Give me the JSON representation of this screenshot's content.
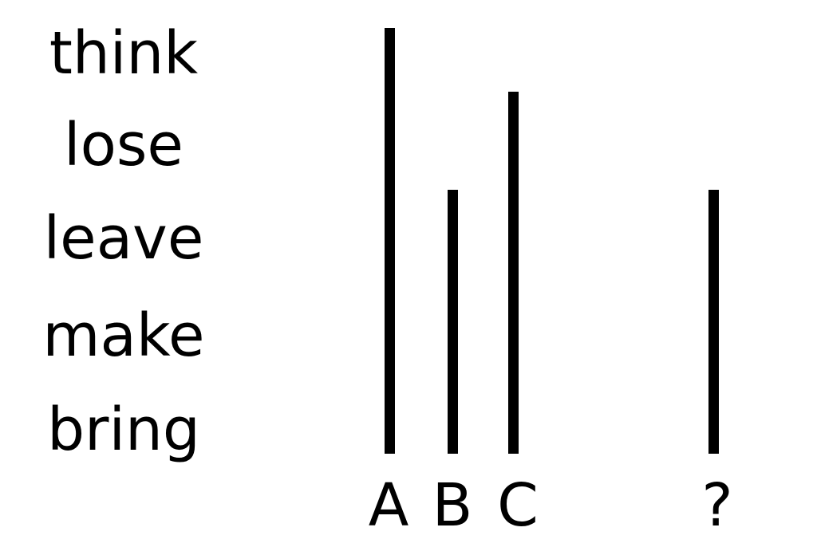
{
  "words": [
    "think",
    "lose",
    "leave",
    "make",
    "bring"
  ],
  "bars": [
    {
      "label": "A",
      "level": 1.0
    },
    {
      "label": "B",
      "level": 0.62
    },
    {
      "label": "C",
      "level": 0.85
    },
    {
      "label": "?",
      "level": 0.62
    }
  ],
  "colors": {
    "ink": "#000000",
    "background": "#ffffff"
  }
}
